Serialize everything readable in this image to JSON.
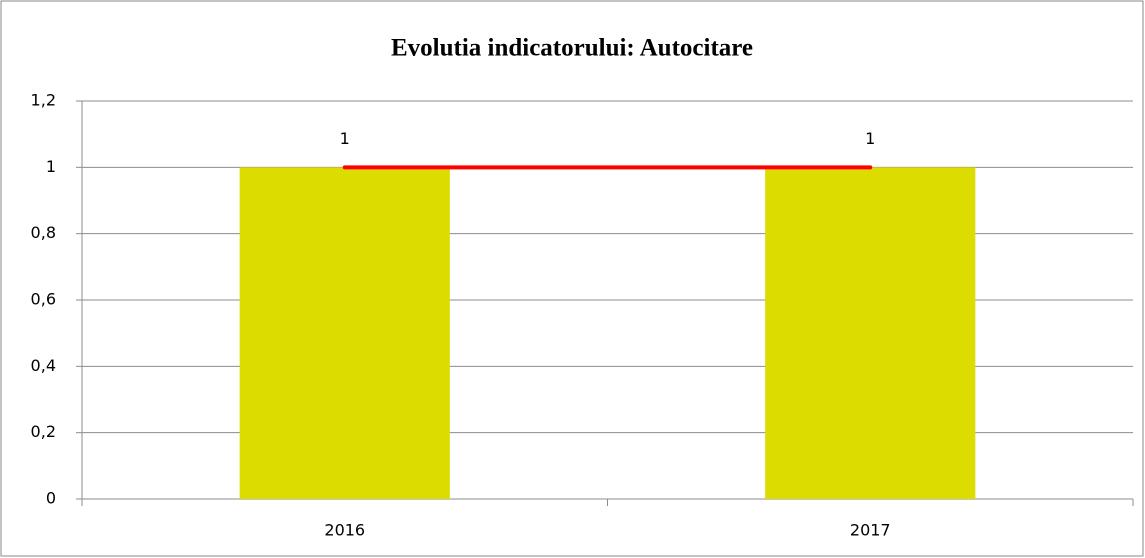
{
  "chart_data": {
    "type": "combo",
    "title": "Evolutia indicatorului: Autocitare",
    "categories": [
      "2016",
      "2017"
    ],
    "series": [
      {
        "type": "bar",
        "color": "#dcdc00",
        "values": [
          1,
          1
        ]
      },
      {
        "type": "line",
        "color": "#ff0000",
        "values": [
          1,
          1
        ]
      }
    ],
    "ylim": [
      0,
      1.2
    ],
    "yticks": [
      0,
      {
        "value": 0.2,
        "label": "0,2"
      },
      {
        "value": 0.4,
        "label": "0,4"
      },
      {
        "value": 0.6,
        "label": "0,6"
      },
      {
        "value": 0.8,
        "label": "0,8"
      },
      1,
      {
        "value": 1.2,
        "label": "1,2"
      }
    ],
    "grid": true
  }
}
